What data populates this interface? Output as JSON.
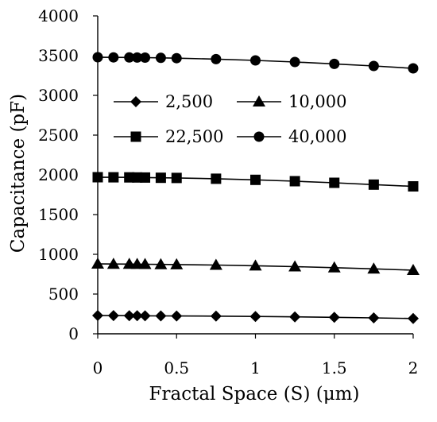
{
  "chart_data": {
    "type": "line",
    "title": "",
    "xlabel": "Fractal Space (S) (μm)",
    "ylabel": "Capacitance (pF)",
    "xlim": [
      0,
      2
    ],
    "ylim": [
      0,
      4000
    ],
    "xticks": [
      0,
      0.5,
      1,
      1.5,
      2
    ],
    "xtick_labels": [
      "0",
      "0.5",
      "1",
      "1.5",
      "2"
    ],
    "yticks": [
      0,
      500,
      1000,
      1500,
      2000,
      2500,
      3000,
      3500,
      4000
    ],
    "ytick_labels": [
      "0",
      "500",
      "1000",
      "1500",
      "2000",
      "2500",
      "3000",
      "3500",
      "4000"
    ],
    "grid": false,
    "legend_position": "upper-center",
    "x": [
      0,
      0.1,
      0.2,
      0.25,
      0.3,
      0.4,
      0.5,
      0.75,
      1,
      1.25,
      1.5,
      1.75,
      2
    ],
    "series": [
      {
        "name": "2,500",
        "marker": "diamond",
        "values": [
          230,
          229,
          228,
          227,
          226,
          225,
          224,
          222,
          218,
          213,
          207,
          200,
          192
        ]
      },
      {
        "name": "10,000",
        "marker": "triangle",
        "values": [
          880,
          878,
          877,
          876,
          875,
          873,
          871,
          865,
          856,
          845,
          832,
          817,
          800
        ]
      },
      {
        "name": "22,500",
        "marker": "square",
        "values": [
          1970,
          1969,
          1968,
          1967,
          1966,
          1963,
          1961,
          1951,
          1937,
          1920,
          1900,
          1877,
          1855
        ]
      },
      {
        "name": "40,000",
        "marker": "circle",
        "values": [
          3480,
          3478,
          3477,
          3476,
          3475,
          3472,
          3468,
          3456,
          3440,
          3420,
          3396,
          3370,
          3340
        ]
      }
    ],
    "colors": {
      "line": "#000000",
      "marker": "#000000",
      "axis": "#000000"
    }
  }
}
